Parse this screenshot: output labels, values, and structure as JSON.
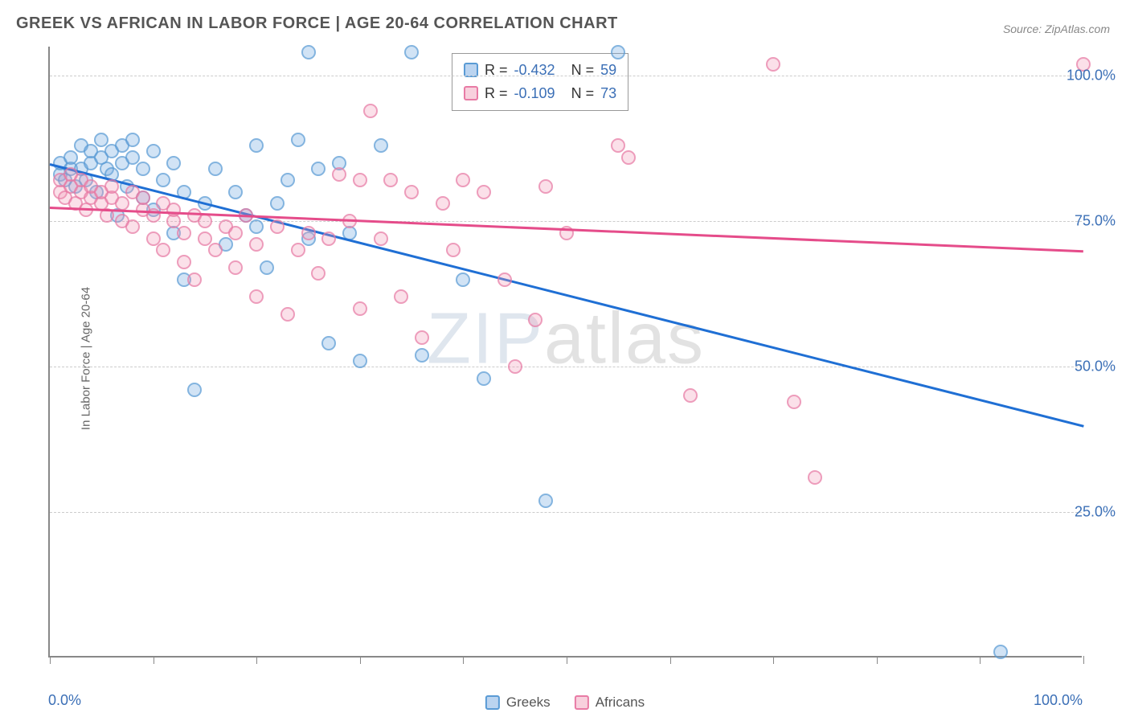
{
  "title": "GREEK VS AFRICAN IN LABOR FORCE | AGE 20-64 CORRELATION CHART",
  "source": "Source: ZipAtlas.com",
  "ylabel": "In Labor Force | Age 20-64",
  "watermark_bold": "ZIP",
  "watermark_thin": "atlas",
  "chart": {
    "type": "scatter",
    "background_color": "#ffffff",
    "grid_color": "#cccccc",
    "axis_color": "#888888",
    "xlim": [
      0,
      100
    ],
    "ylim": [
      0,
      105
    ],
    "x_ticks": [
      0,
      10,
      20,
      30,
      40,
      50,
      60,
      70,
      80,
      90,
      100
    ],
    "y_gridlines": [
      25,
      50,
      75,
      100
    ],
    "y_tick_labels": {
      "25": "25.0%",
      "50": "50.0%",
      "75": "75.0%",
      "100": "100.0%"
    },
    "x_tick_labels": {
      "0": "0.0%",
      "100": "100.0%"
    },
    "marker_size": 18,
    "series": [
      {
        "name": "Greeks",
        "color_fill": "rgba(120,170,225,0.45)",
        "color_stroke": "#5a9bd5",
        "trend_color": "#1f6fd4",
        "R": "-0.432",
        "N": "59",
        "trendline": {
          "x1": 0,
          "y1": 85,
          "x2": 100,
          "y2": 40
        },
        "points": [
          [
            1,
            83
          ],
          [
            1,
            85
          ],
          [
            1.5,
            82
          ],
          [
            2,
            84
          ],
          [
            2,
            86
          ],
          [
            2.5,
            81
          ],
          [
            3,
            84
          ],
          [
            3,
            88
          ],
          [
            3.5,
            82
          ],
          [
            4,
            85
          ],
          [
            4,
            87
          ],
          [
            4.5,
            80
          ],
          [
            5,
            86
          ],
          [
            5,
            89
          ],
          [
            5.5,
            84
          ],
          [
            6,
            83
          ],
          [
            6,
            87
          ],
          [
            6.5,
            76
          ],
          [
            7,
            85
          ],
          [
            7,
            88
          ],
          [
            7.5,
            81
          ],
          [
            8,
            86
          ],
          [
            8,
            89
          ],
          [
            9,
            79
          ],
          [
            9,
            84
          ],
          [
            10,
            87
          ],
          [
            10,
            77
          ],
          [
            11,
            82
          ],
          [
            12,
            85
          ],
          [
            12,
            73
          ],
          [
            13,
            80
          ],
          [
            13,
            65
          ],
          [
            14,
            46
          ],
          [
            15,
            78
          ],
          [
            16,
            84
          ],
          [
            17,
            71
          ],
          [
            18,
            80
          ],
          [
            19,
            76
          ],
          [
            20,
            88
          ],
          [
            20,
            74
          ],
          [
            21,
            67
          ],
          [
            22,
            78
          ],
          [
            23,
            82
          ],
          [
            24,
            89
          ],
          [
            25,
            104
          ],
          [
            25,
            72
          ],
          [
            26,
            84
          ],
          [
            27,
            54
          ],
          [
            28,
            85
          ],
          [
            29,
            73
          ],
          [
            30,
            51
          ],
          [
            32,
            88
          ],
          [
            35,
            104
          ],
          [
            36,
            52
          ],
          [
            40,
            65
          ],
          [
            42,
            48
          ],
          [
            48,
            27
          ],
          [
            55,
            104
          ],
          [
            92,
            1
          ]
        ]
      },
      {
        "name": "Africans",
        "color_fill": "rgba(240,150,180,0.4)",
        "color_stroke": "#e87ba5",
        "trend_color": "#e54c8a",
        "R": "-0.109",
        "N": "73",
        "trendline": {
          "x1": 0,
          "y1": 77.5,
          "x2": 100,
          "y2": 70
        },
        "points": [
          [
            1,
            80
          ],
          [
            1,
            82
          ],
          [
            1.5,
            79
          ],
          [
            2,
            81
          ],
          [
            2,
            83
          ],
          [
            2.5,
            78
          ],
          [
            3,
            80
          ],
          [
            3,
            82
          ],
          [
            3.5,
            77
          ],
          [
            4,
            79
          ],
          [
            4,
            81
          ],
          [
            5,
            78
          ],
          [
            5,
            80
          ],
          [
            5.5,
            76
          ],
          [
            6,
            79
          ],
          [
            6,
            81
          ],
          [
            7,
            75
          ],
          [
            7,
            78
          ],
          [
            8,
            80
          ],
          [
            8,
            74
          ],
          [
            9,
            77
          ],
          [
            9,
            79
          ],
          [
            10,
            72
          ],
          [
            10,
            76
          ],
          [
            11,
            78
          ],
          [
            11,
            70
          ],
          [
            12,
            75
          ],
          [
            12,
            77
          ],
          [
            13,
            68
          ],
          [
            13,
            73
          ],
          [
            14,
            76
          ],
          [
            14,
            65
          ],
          [
            15,
            72
          ],
          [
            15,
            75
          ],
          [
            16,
            70
          ],
          [
            17,
            74
          ],
          [
            18,
            67
          ],
          [
            18,
            73
          ],
          [
            19,
            76
          ],
          [
            20,
            62
          ],
          [
            20,
            71
          ],
          [
            22,
            74
          ],
          [
            23,
            59
          ],
          [
            24,
            70
          ],
          [
            25,
            73
          ],
          [
            26,
            66
          ],
          [
            27,
            72
          ],
          [
            28,
            83
          ],
          [
            29,
            75
          ],
          [
            30,
            60
          ],
          [
            30,
            82
          ],
          [
            31,
            94
          ],
          [
            32,
            72
          ],
          [
            33,
            82
          ],
          [
            34,
            62
          ],
          [
            35,
            80
          ],
          [
            36,
            55
          ],
          [
            38,
            78
          ],
          [
            39,
            70
          ],
          [
            40,
            82
          ],
          [
            42,
            80
          ],
          [
            44,
            65
          ],
          [
            45,
            50
          ],
          [
            47,
            58
          ],
          [
            48,
            81
          ],
          [
            50,
            73
          ],
          [
            55,
            88
          ],
          [
            56,
            86
          ],
          [
            62,
            45
          ],
          [
            70,
            102
          ],
          [
            72,
            44
          ],
          [
            74,
            31
          ],
          [
            100,
            102
          ]
        ]
      }
    ]
  },
  "bottom_legend": [
    {
      "label": "Greeks",
      "swatch": "blue"
    },
    {
      "label": "Africans",
      "swatch": "pink"
    }
  ]
}
